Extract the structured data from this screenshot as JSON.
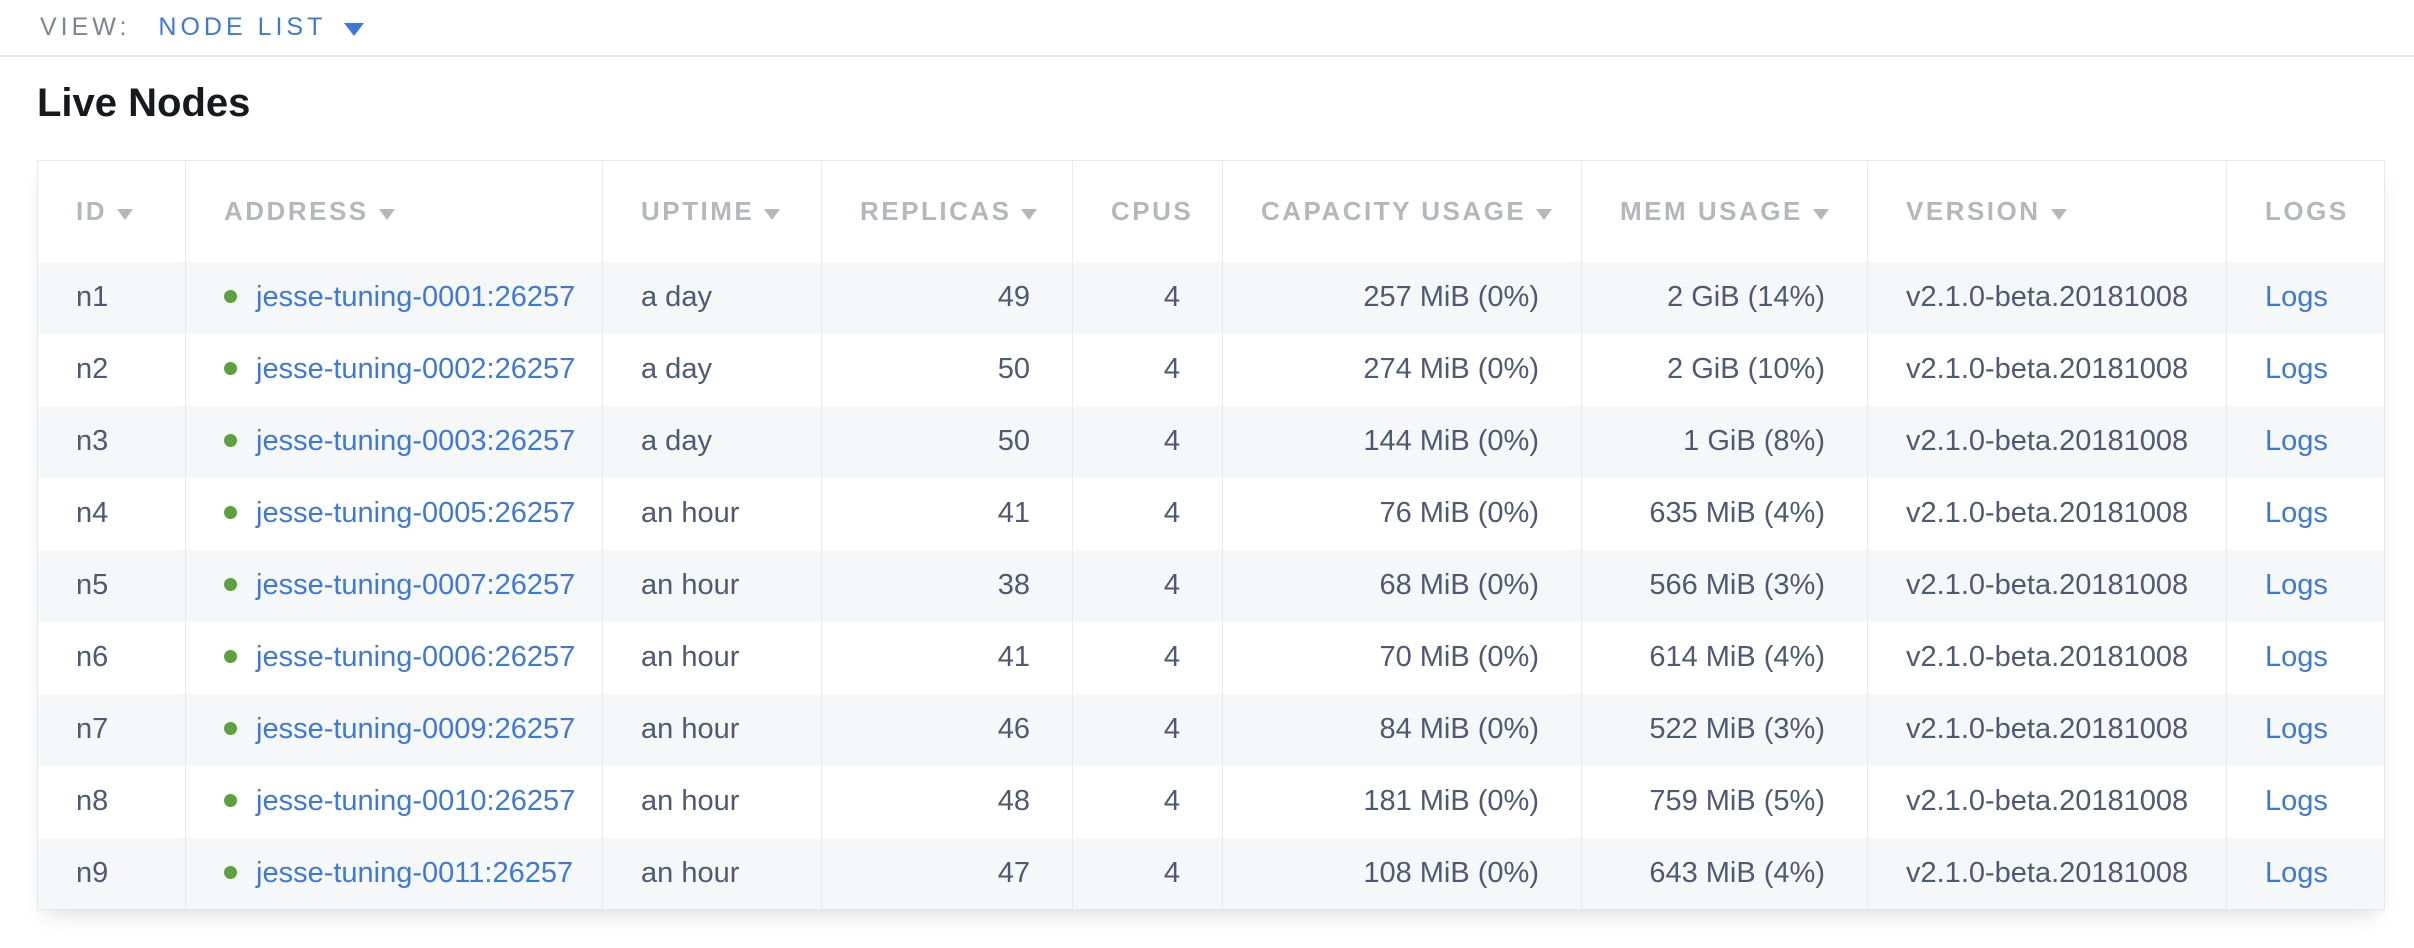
{
  "view_bar": {
    "label": "VIEW:",
    "selected": "NODE LIST"
  },
  "page": {
    "title": "Live Nodes"
  },
  "colors": {
    "link_blue": "#3e79d9",
    "live_dot_green": "#5da13f",
    "header_gray": "#b4b7bc",
    "body_text": "#4e5a71",
    "row_alt_bg": "#f6f7f8"
  },
  "table": {
    "columns": [
      {
        "key": "id",
        "label": "ID",
        "sortable": true
      },
      {
        "key": "address",
        "label": "ADDRESS",
        "sortable": true
      },
      {
        "key": "uptime",
        "label": "UPTIME",
        "sortable": true
      },
      {
        "key": "replicas",
        "label": "REPLICAS",
        "sortable": true
      },
      {
        "key": "cpus",
        "label": "CPUS",
        "sortable": false
      },
      {
        "key": "capacity",
        "label": "CAPACITY USAGE",
        "sortable": true
      },
      {
        "key": "mem",
        "label": "MEM USAGE",
        "sortable": true
      },
      {
        "key": "version",
        "label": "VERSION",
        "sortable": true
      },
      {
        "key": "logs",
        "label": "LOGS",
        "sortable": false
      }
    ],
    "rows": [
      {
        "id": "n1",
        "address": "jesse-tuning-0001:26257",
        "uptime": "a day",
        "replicas": "49",
        "cpus": "4",
        "capacity": "257 MiB (0%)",
        "mem": "2 GiB (14%)",
        "version": "v2.1.0-beta.20181008",
        "logs": "Logs"
      },
      {
        "id": "n2",
        "address": "jesse-tuning-0002:26257",
        "uptime": "a day",
        "replicas": "50",
        "cpus": "4",
        "capacity": "274 MiB (0%)",
        "mem": "2 GiB (10%)",
        "version": "v2.1.0-beta.20181008",
        "logs": "Logs"
      },
      {
        "id": "n3",
        "address": "jesse-tuning-0003:26257",
        "uptime": "a day",
        "replicas": "50",
        "cpus": "4",
        "capacity": "144 MiB (0%)",
        "mem": "1 GiB (8%)",
        "version": "v2.1.0-beta.20181008",
        "logs": "Logs"
      },
      {
        "id": "n4",
        "address": "jesse-tuning-0005:26257",
        "uptime": "an hour",
        "replicas": "41",
        "cpus": "4",
        "capacity": "76 MiB (0%)",
        "mem": "635 MiB (4%)",
        "version": "v2.1.0-beta.20181008",
        "logs": "Logs"
      },
      {
        "id": "n5",
        "address": "jesse-tuning-0007:26257",
        "uptime": "an hour",
        "replicas": "38",
        "cpus": "4",
        "capacity": "68 MiB (0%)",
        "mem": "566 MiB (3%)",
        "version": "v2.1.0-beta.20181008",
        "logs": "Logs"
      },
      {
        "id": "n6",
        "address": "jesse-tuning-0006:26257",
        "uptime": "an hour",
        "replicas": "41",
        "cpus": "4",
        "capacity": "70 MiB (0%)",
        "mem": "614 MiB (4%)",
        "version": "v2.1.0-beta.20181008",
        "logs": "Logs"
      },
      {
        "id": "n7",
        "address": "jesse-tuning-0009:26257",
        "uptime": "an hour",
        "replicas": "46",
        "cpus": "4",
        "capacity": "84 MiB (0%)",
        "mem": "522 MiB (3%)",
        "version": "v2.1.0-beta.20181008",
        "logs": "Logs"
      },
      {
        "id": "n8",
        "address": "jesse-tuning-0010:26257",
        "uptime": "an hour",
        "replicas": "48",
        "cpus": "4",
        "capacity": "181 MiB (0%)",
        "mem": "759 MiB (5%)",
        "version": "v2.1.0-beta.20181008",
        "logs": "Logs"
      },
      {
        "id": "n9",
        "address": "jesse-tuning-0011:26257",
        "uptime": "an hour",
        "replicas": "47",
        "cpus": "4",
        "capacity": "108 MiB (0%)",
        "mem": "643 MiB (4%)",
        "version": "v2.1.0-beta.20181008",
        "logs": "Logs"
      }
    ]
  }
}
